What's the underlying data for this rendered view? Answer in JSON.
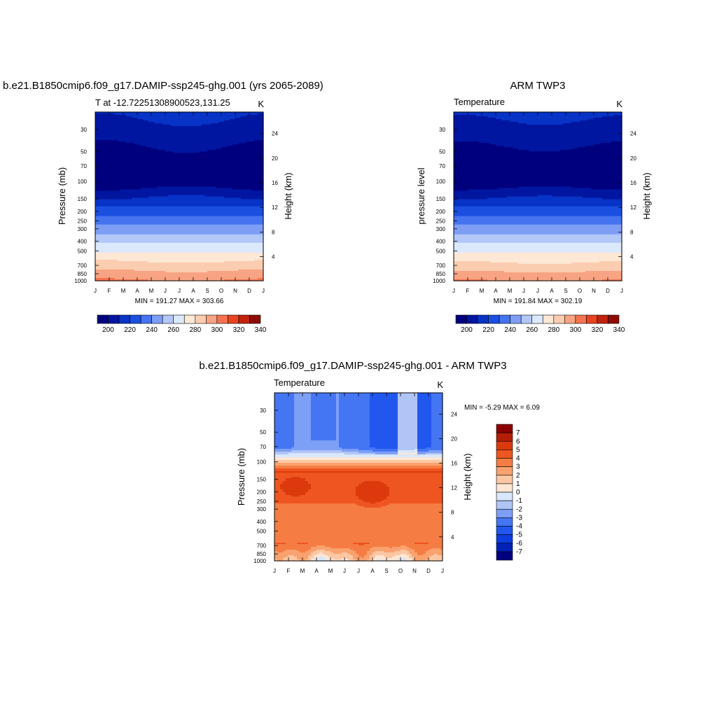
{
  "palettes": {
    "abs": [
      "#00007f",
      "#0016a0",
      "#0733c6",
      "#1a4fe0",
      "#4674f0",
      "#7e9ef5",
      "#b3c8f7",
      "#dce8fb",
      "#fde8d6",
      "#fbcdb0",
      "#f8a383",
      "#f47451",
      "#e9441f",
      "#c1230c",
      "#8d0d06"
    ],
    "diff": [
      "#00007f",
      "#0020b8",
      "#0b3ee0",
      "#2157ee",
      "#4476f4",
      "#7d9ff6",
      "#b0c5f6",
      "#d8e7fb",
      "#fde6d4",
      "#fbc7a3",
      "#f9a26f",
      "#f57d43",
      "#ee5520",
      "#dc3a0d",
      "#b41e05",
      "#8b0000"
    ]
  },
  "charts": [
    {
      "title_left": "b.e21.B1850cmip6.f09_g17.DAMIP-ssp245-ghg.001 (yrs 2065-2089)",
      "title_center": "",
      "subtitle_left": "T at -12.72251308900523,131.25",
      "subtitle_right": "K",
      "ylabel": "Pressure (mb)",
      "ylabel_right": "Height (km)",
      "minmax": "MIN = 191.27 MAX = 303.66"
    },
    {
      "title_left": "",
      "title_center": "ARM TWP3",
      "subtitle_left": "Temperature",
      "subtitle_right": "K",
      "ylabel": "pressure level",
      "ylabel_right": "Height (km)",
      "minmax": "MIN = 191.84 MAX = 302.19"
    },
    {
      "title_left": "",
      "title_center": "b.e21.B1850cmip6.f09_g17.DAMIP-ssp245-ghg.001 - ARM TWP3",
      "subtitle_left": "Temperature",
      "subtitle_right": "K",
      "ylabel": "Pressure (mb)",
      "ylabel_right": "Height (km)",
      "minmax": "MIN =  -5.29 MAX =   6.09"
    }
  ],
  "chart_data": [
    {
      "type": "heatmap",
      "title": "b.e21.B1850cmip6.f09_g17.DAMIP-ssp245-ghg.001 (yrs 2065-2089)",
      "subtitle": "T at -12.72251308900523,131.25",
      "units": "K",
      "xlabel": "",
      "ylabel": "Pressure (mb)",
      "ylabel_right": "Height (km)",
      "x_ticks": [
        "J",
        "F",
        "M",
        "A",
        "M",
        "J",
        "J",
        "A",
        "S",
        "O",
        "N",
        "D",
        "J"
      ],
      "y_ticks": [
        "30",
        "50",
        "70",
        "100",
        "150",
        "200",
        "250",
        "300",
        "400",
        "500",
        "700",
        "850",
        "1000"
      ],
      "y_ticks_right": [
        "24",
        "20",
        "16",
        "12",
        "8",
        "4"
      ],
      "y_scale": "log",
      "ylim": [
        1000,
        20
      ],
      "colorbar_levels": [
        195,
        200,
        210,
        220,
        230,
        240,
        250,
        260,
        270,
        280,
        290,
        300,
        310,
        320,
        330,
        340
      ],
      "colorbar_labels": [
        "200",
        "220",
        "240",
        "260",
        "280",
        "300",
        "320",
        "340"
      ],
      "min": 191.27,
      "max": 303.66
    },
    {
      "type": "heatmap",
      "title": "ARM TWP3",
      "subtitle": "Temperature",
      "units": "K",
      "xlabel": "",
      "ylabel": "pressure level",
      "ylabel_right": "Height (km)",
      "x_ticks": [
        "J",
        "F",
        "M",
        "A",
        "M",
        "J",
        "J",
        "A",
        "S",
        "O",
        "N",
        "D",
        "J"
      ],
      "y_ticks": [
        "30",
        "50",
        "70",
        "100",
        "150",
        "200",
        "250",
        "300",
        "400",
        "500",
        "700",
        "850",
        "1000"
      ],
      "y_ticks_right": [
        "24",
        "20",
        "16",
        "12",
        "8",
        "4"
      ],
      "y_scale": "log",
      "ylim": [
        1000,
        20
      ],
      "colorbar_labels": [
        "200",
        "220",
        "240",
        "260",
        "280",
        "300",
        "320",
        "340"
      ],
      "min": 191.84,
      "max": 302.19
    },
    {
      "type": "heatmap",
      "title": "b.e21.B1850cmip6.f09_g17.DAMIP-ssp245-ghg.001 - ARM TWP3",
      "subtitle": "Temperature",
      "units": "K",
      "xlabel": "",
      "ylabel": "Pressure (mb)",
      "ylabel_right": "Height (km)",
      "x_ticks": [
        "J",
        "F",
        "M",
        "A",
        "M",
        "J",
        "J",
        "A",
        "S",
        "O",
        "N",
        "D",
        "J"
      ],
      "y_ticks": [
        "30",
        "50",
        "70",
        "100",
        "150",
        "200",
        "250",
        "300",
        "400",
        "500",
        "700",
        "850",
        "1000"
      ],
      "y_ticks_right": [
        "24",
        "20",
        "16",
        "12",
        "8",
        "4"
      ],
      "y_scale": "log",
      "ylim": [
        1000,
        20
      ],
      "colorbar_labels": [
        "7",
        "6",
        "5",
        "4",
        "3",
        "2",
        "1",
        "0",
        "-1",
        "-2",
        "-3",
        "-4",
        "-5",
        "-6",
        "-7"
      ],
      "min": -5.29,
      "max": 6.09
    }
  ]
}
